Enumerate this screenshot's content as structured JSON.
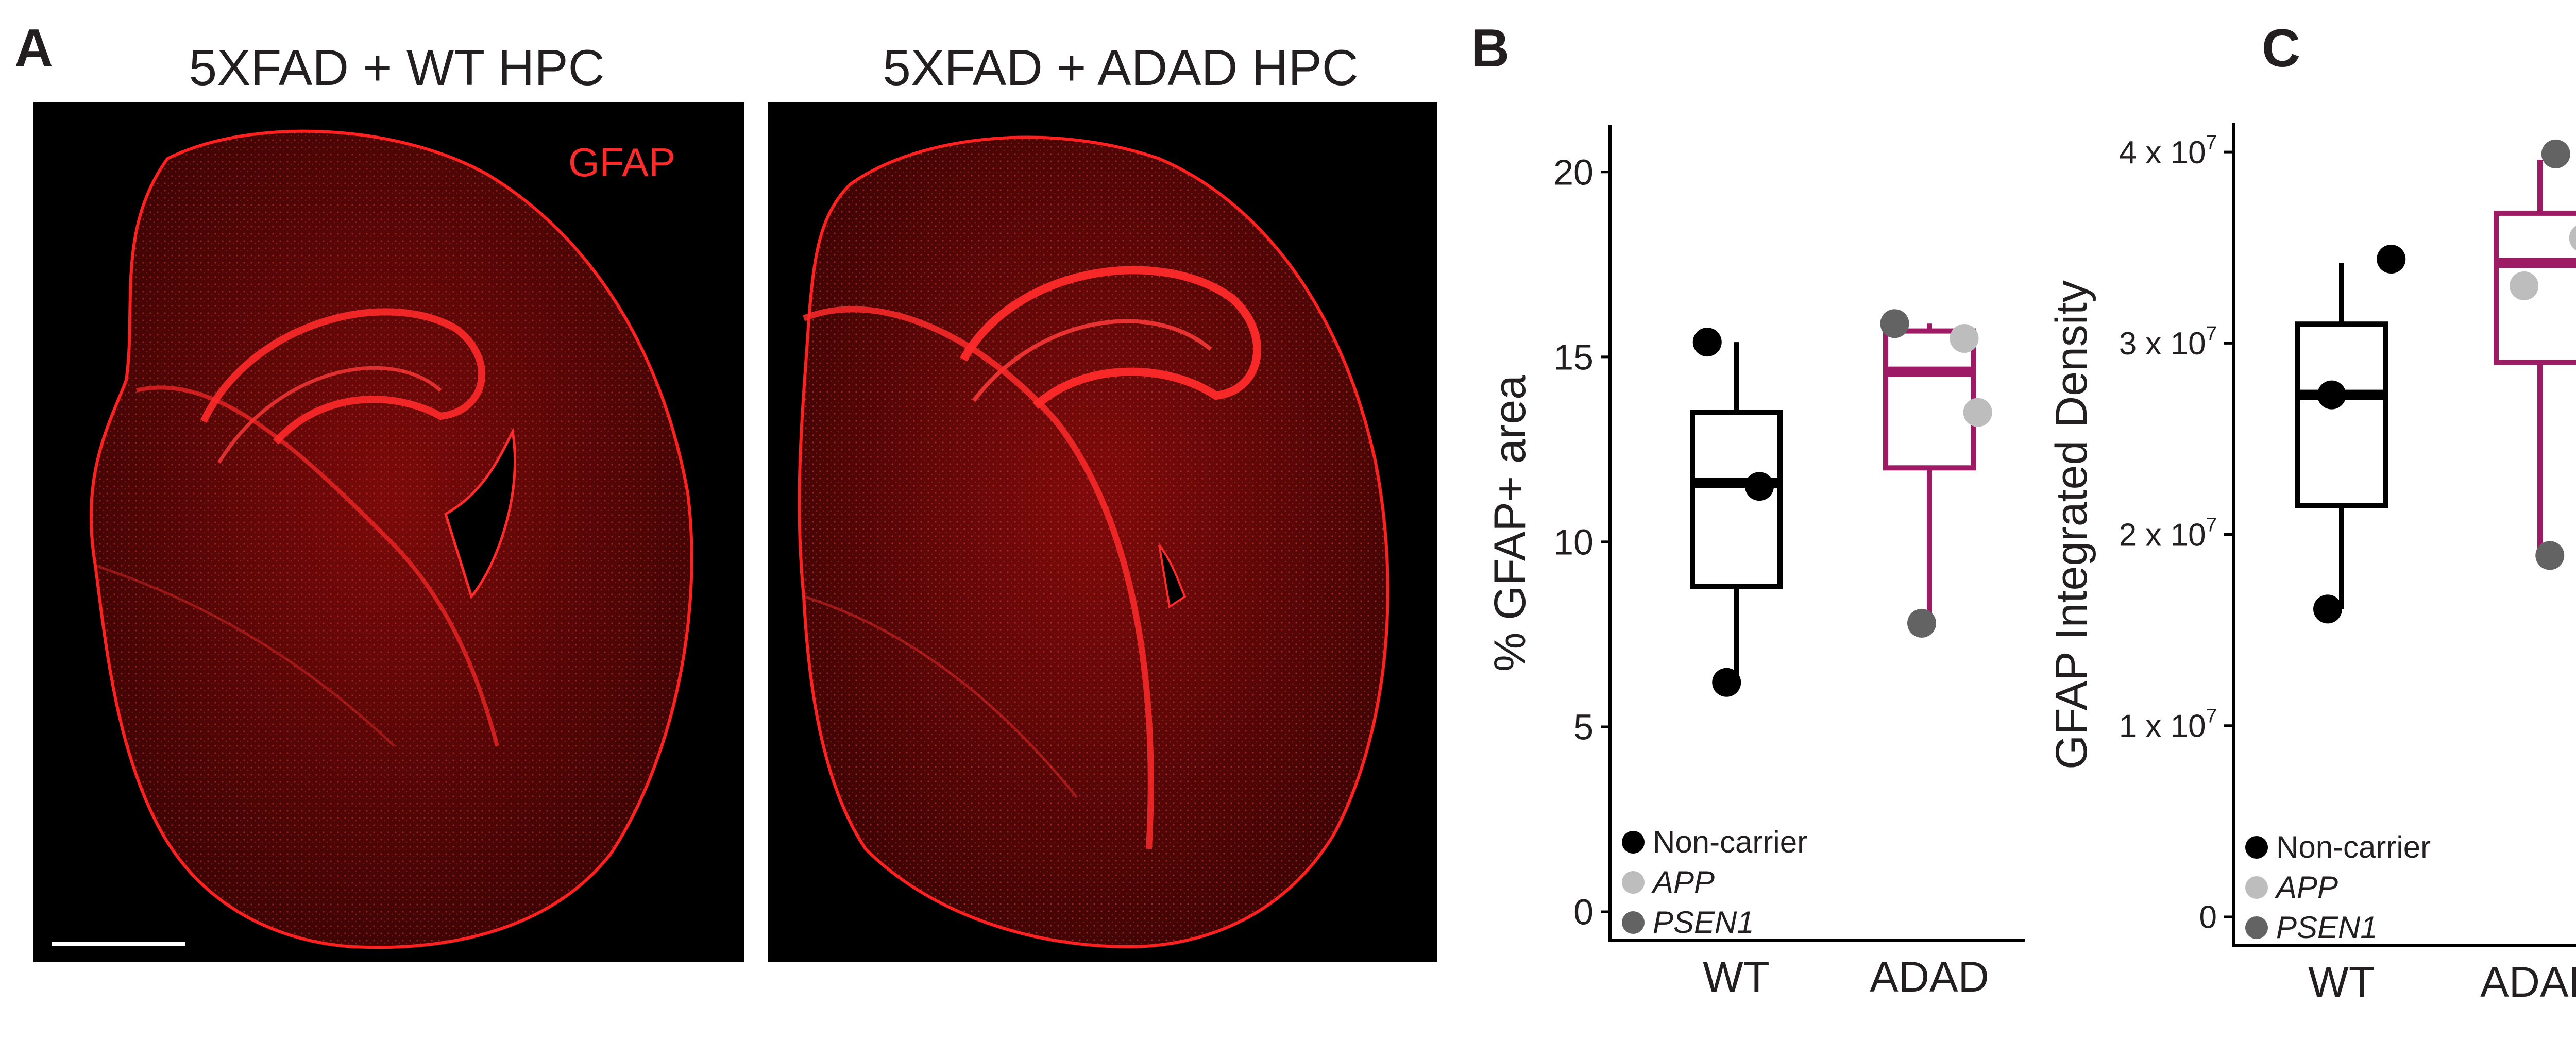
{
  "panel_a": {
    "letter": "A",
    "left_title": "5XFAD + WT HPC",
    "right_title": "5XFAD + ADAD HPC",
    "stain_label": "GFAP",
    "stain_color": "#ff2a2a"
  },
  "chart_data": [
    {
      "type": "box",
      "panel_letter": "B",
      "ylabel": "% GFAP+ area",
      "categories": [
        "WT",
        "ADAD"
      ],
      "ylim": [
        0,
        21
      ],
      "yticks": [
        0,
        5,
        10,
        15,
        20
      ],
      "ytick_labels": [
        "0",
        "5",
        "10",
        "15",
        "20"
      ],
      "box_colors": [
        "#000000",
        "#9d1a64"
      ],
      "boxes": [
        {
          "category": "WT",
          "whisker_low": 6.2,
          "q1": 8.8,
          "median": 11.6,
          "q3": 13.5,
          "whisker_high": 15.4
        },
        {
          "category": "ADAD",
          "whisker_low": 7.8,
          "q1": 12.0,
          "median": 14.6,
          "q3": 15.7,
          "whisker_high": 15.9
        }
      ],
      "points": [
        {
          "category": "WT",
          "y": 15.4,
          "group": "Non-carrier",
          "offset": -0.15
        },
        {
          "category": "WT",
          "y": 11.5,
          "group": "Non-carrier",
          "offset": 0.12
        },
        {
          "category": "WT",
          "y": 6.2,
          "group": "Non-carrier",
          "offset": -0.05
        },
        {
          "category": "ADAD",
          "y": 15.9,
          "group": "PSEN1",
          "offset": -0.18
        },
        {
          "category": "ADAD",
          "y": 15.5,
          "group": "APP",
          "offset": 0.18
        },
        {
          "category": "ADAD",
          "y": 13.5,
          "group": "APP",
          "offset": 0.25
        },
        {
          "category": "ADAD",
          "y": 7.8,
          "group": "PSEN1",
          "offset": -0.04
        }
      ],
      "legend": [
        {
          "label": "Non-carrier",
          "color": "#000000",
          "italic": false
        },
        {
          "label": "APP",
          "color": "#bdbdbd",
          "italic": true
        },
        {
          "label": "PSEN1",
          "color": "#636363",
          "italic": true
        }
      ],
      "legend_position": "bottom-left"
    },
    {
      "type": "box",
      "panel_letter": "C",
      "ylabel": "GFAP Integrated Density",
      "categories": [
        "WT",
        "ADAD"
      ],
      "ylim": [
        0,
        41000000
      ],
      "yticks": [
        0,
        10000000,
        20000000,
        30000000,
        40000000
      ],
      "ytick_labels": [
        {
          "base": "0",
          "exp": ""
        },
        {
          "base": "1 x 10",
          "exp": "7"
        },
        {
          "base": "2 x 10",
          "exp": "7"
        },
        {
          "base": "3 x 10",
          "exp": "7"
        },
        {
          "base": "4 x 10",
          "exp": "7"
        }
      ],
      "box_colors": [
        "#000000",
        "#9d1a64"
      ],
      "boxes": [
        {
          "category": "WT",
          "whisker_low": 16100000,
          "q1": 21500000,
          "median": 27300000,
          "q3": 31000000,
          "whisker_high": 34200000
        },
        {
          "category": "ADAD",
          "whisker_low": 19000000,
          "q1": 29000000,
          "median": 34200000,
          "q3": 36800000,
          "whisker_high": 39600000
        }
      ],
      "points": [
        {
          "category": "WT",
          "y": 34400000,
          "group": "Non-carrier",
          "offset": 0.25
        },
        {
          "category": "WT",
          "y": 27300000,
          "group": "Non-carrier",
          "offset": -0.05
        },
        {
          "category": "WT",
          "y": 16100000,
          "group": "Non-carrier",
          "offset": -0.07
        },
        {
          "category": "ADAD",
          "y": 39900000,
          "group": "PSEN1",
          "offset": 0.08
        },
        {
          "category": "ADAD",
          "y": 35500000,
          "group": "APP",
          "offset": 0.22
        },
        {
          "category": "ADAD",
          "y": 33000000,
          "group": "APP",
          "offset": -0.08
        },
        {
          "category": "ADAD",
          "y": 18900000,
          "group": "PSEN1",
          "offset": 0.05
        }
      ],
      "legend": [
        {
          "label": "Non-carrier",
          "color": "#000000",
          "italic": false
        },
        {
          "label": "APP",
          "color": "#bdbdbd",
          "italic": true
        },
        {
          "label": "PSEN1",
          "color": "#636363",
          "italic": true
        }
      ],
      "legend_position": "bottom-left"
    }
  ]
}
